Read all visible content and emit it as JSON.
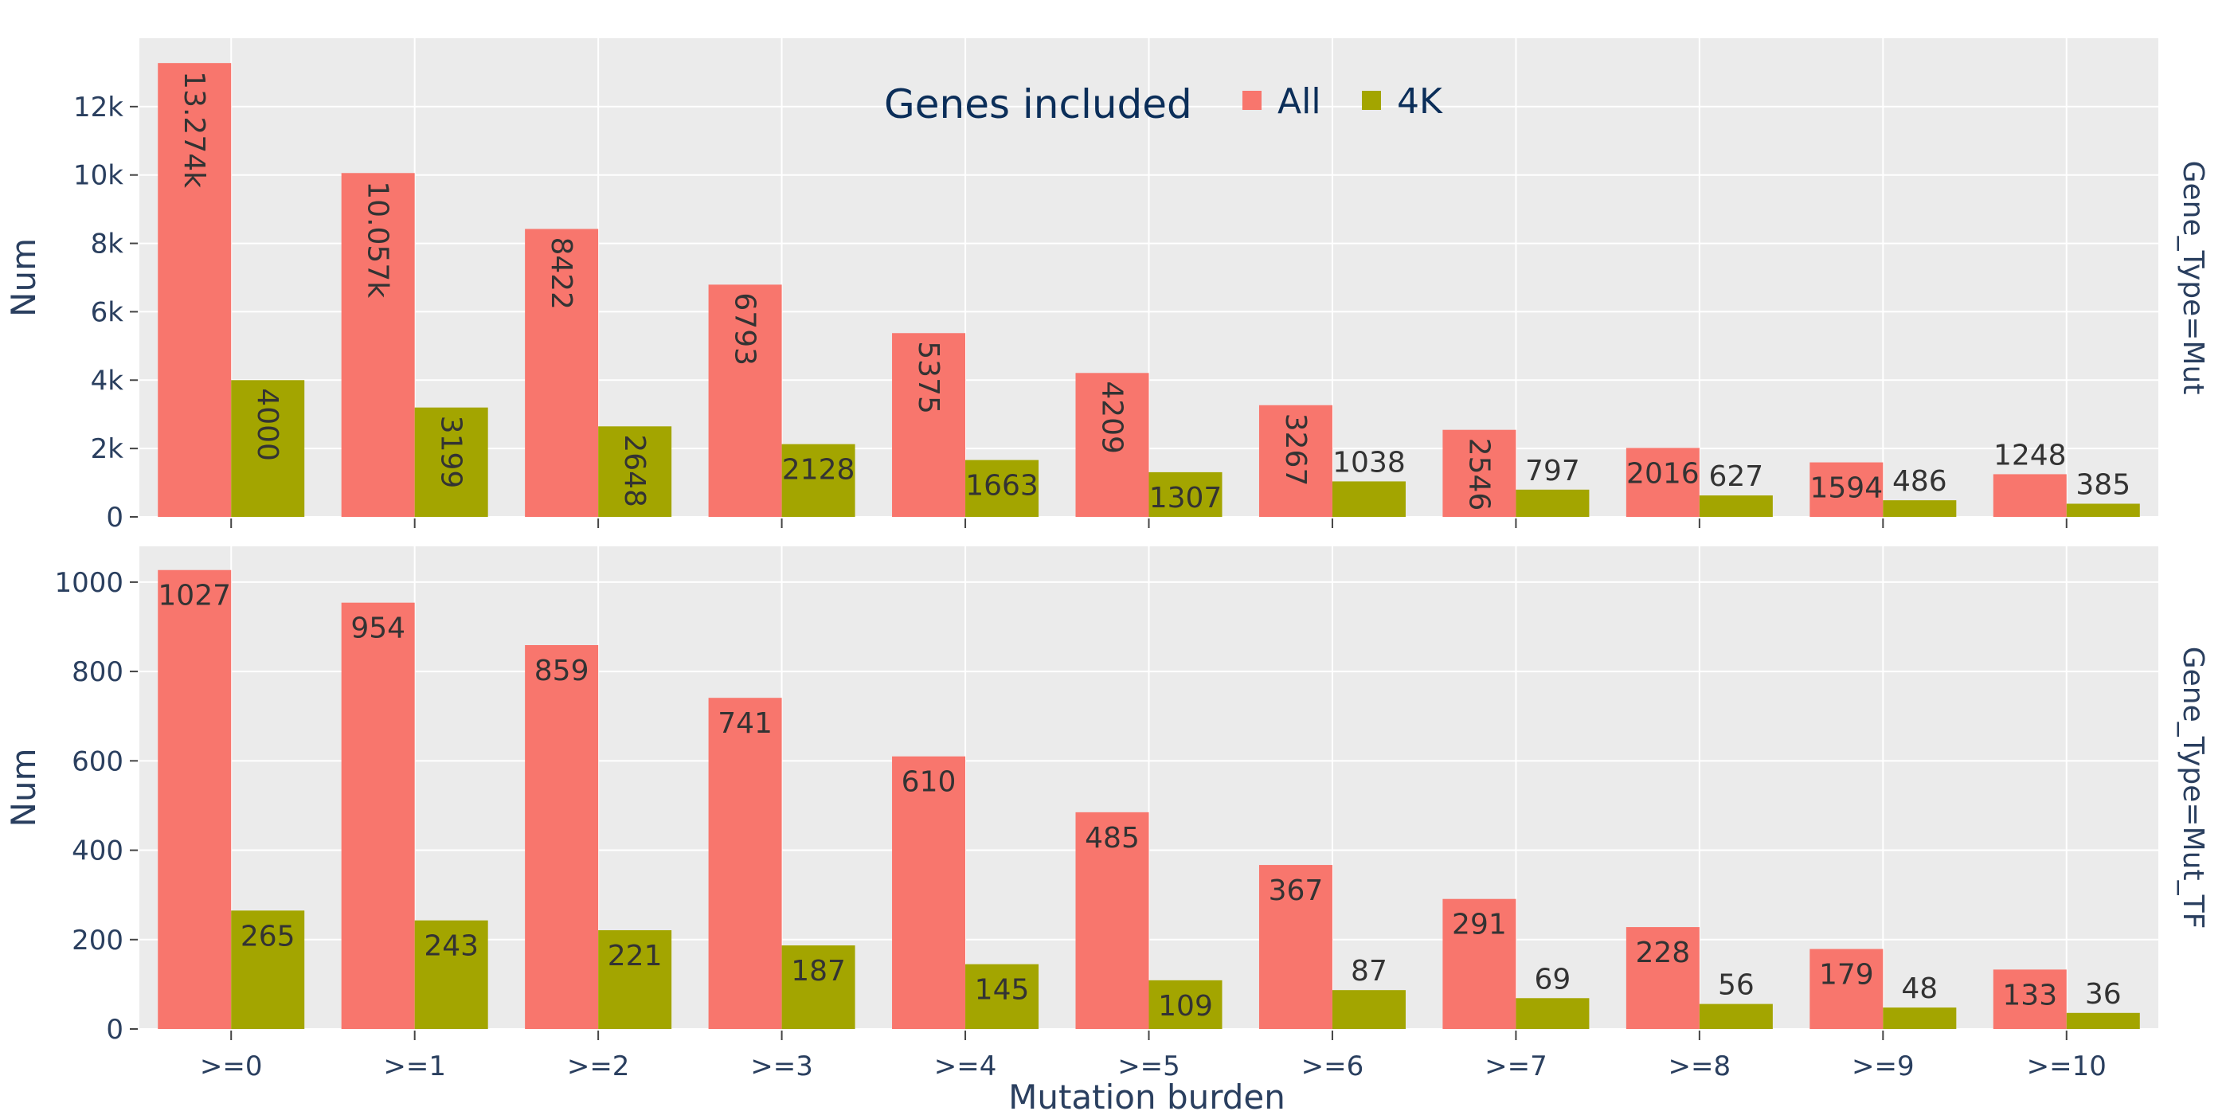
{
  "chart_data": {
    "type": "bar",
    "categories": [
      ">=0",
      ">=1",
      ">=2",
      ">=3",
      ">=4",
      ">=5",
      ">=6",
      ">=7",
      ">=8",
      ">=9",
      ">=10"
    ],
    "xlabel": "Mutation burden",
    "ylabel": "Num",
    "legend": {
      "title": "Genes included",
      "placement": "top-center",
      "items": [
        {
          "name": "All",
          "color": "#f8766d"
        },
        {
          "name": "4K",
          "color": "#a3a500"
        }
      ]
    },
    "grid": true,
    "panels": [
      {
        "facet_label": "Gene_Type=Mut",
        "ylim": [
          0,
          14000
        ],
        "yticks": [
          0,
          2000,
          4000,
          6000,
          8000,
          10000,
          12000
        ],
        "ytick_labels": [
          "0",
          "2k",
          "4k",
          "6k",
          "8k",
          "10k",
          "12k"
        ],
        "series": [
          {
            "name": "All",
            "values": [
              13274,
              10057,
              8422,
              6793,
              5375,
              4209,
              3267,
              2546,
              2016,
              1594,
              1248
            ],
            "labels": [
              "13.274k",
              "10.057k",
              "8422",
              "6793",
              "5375",
              "4209",
              "3267",
              "2546",
              "2016",
              "1594",
              "1248"
            ]
          },
          {
            "name": "4K",
            "values": [
              4000,
              3199,
              2648,
              2128,
              1663,
              1307,
              1038,
              797,
              627,
              486,
              385
            ],
            "labels": [
              "4000",
              "3199",
              "2648",
              "2128",
              "1663",
              "1307",
              "1038",
              "797",
              "627",
              "486",
              "385"
            ]
          }
        ]
      },
      {
        "facet_label": "Gene_Type=Mut_TF",
        "ylim": [
          0,
          1080
        ],
        "yticks": [
          0,
          200,
          400,
          600,
          800,
          1000
        ],
        "ytick_labels": [
          "0",
          "200",
          "400",
          "600",
          "800",
          "1000"
        ],
        "series": [
          {
            "name": "All",
            "values": [
              1027,
              954,
              859,
              741,
              610,
              485,
              367,
              291,
              228,
              179,
              133
            ],
            "labels": [
              "1027",
              "954",
              "859",
              "741",
              "610",
              "485",
              "367",
              "291",
              "228",
              "179",
              "133"
            ]
          },
          {
            "name": "4K",
            "values": [
              265,
              243,
              221,
              187,
              145,
              109,
              87,
              69,
              56,
              48,
              36
            ],
            "labels": [
              "265",
              "243",
              "221",
              "187",
              "145",
              "109",
              "87",
              "69",
              "56",
              "48",
              "36"
            ]
          }
        ]
      }
    ]
  }
}
